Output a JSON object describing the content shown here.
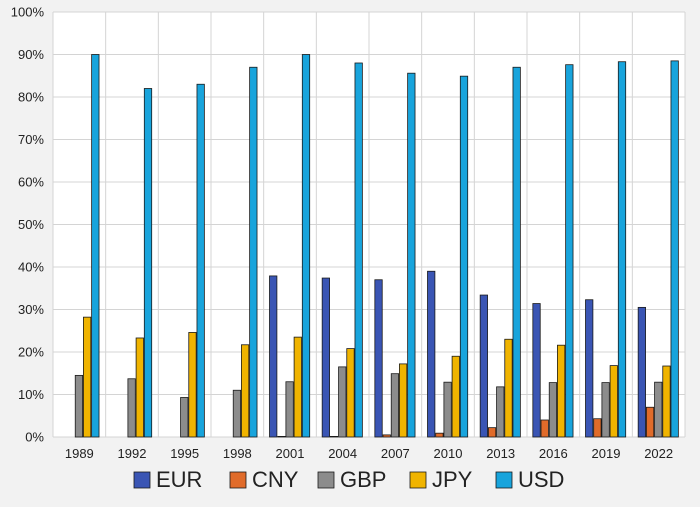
{
  "chart_data": {
    "type": "bar",
    "title": "",
    "xlabel": "",
    "ylabel": "",
    "ylim": [
      0,
      100
    ],
    "y_ticks": [
      "0%",
      "10%",
      "20%",
      "30%",
      "40%",
      "50%",
      "60%",
      "70%",
      "80%",
      "90%",
      "100%"
    ],
    "grid": true,
    "legend_position": "bottom",
    "categories": [
      "1989",
      "1992",
      "1995",
      "1998",
      "2001",
      "2004",
      "2007",
      "2010",
      "2013",
      "2016",
      "2019",
      "2022"
    ],
    "series": [
      {
        "name": "EUR",
        "color": "#3a55b4",
        "values": [
          null,
          null,
          null,
          null,
          37.9,
          37.4,
          37.0,
          39.0,
          33.4,
          31.4,
          32.3,
          30.5
        ]
      },
      {
        "name": "CNY",
        "color": "#e06b2a",
        "values": [
          null,
          null,
          null,
          null,
          0.0,
          0.1,
          0.5,
          0.9,
          2.2,
          4.0,
          4.3,
          7.0
        ]
      },
      {
        "name": "GBP",
        "color": "#8c8c8c",
        "values": [
          14.5,
          13.7,
          9.3,
          11.0,
          13.0,
          16.5,
          14.9,
          12.9,
          11.8,
          12.8,
          12.8,
          12.9
        ]
      },
      {
        "name": "JPY",
        "color": "#f0b400",
        "values": [
          28.2,
          23.3,
          24.6,
          21.7,
          23.5,
          20.8,
          17.2,
          19.0,
          23.0,
          21.6,
          16.8,
          16.7
        ]
      },
      {
        "name": "USD",
        "color": "#18a4dc",
        "values": [
          90.0,
          82.0,
          83.0,
          87.0,
          90.0,
          88.0,
          85.6,
          84.9,
          87.0,
          87.6,
          88.3,
          88.5
        ]
      }
    ]
  }
}
